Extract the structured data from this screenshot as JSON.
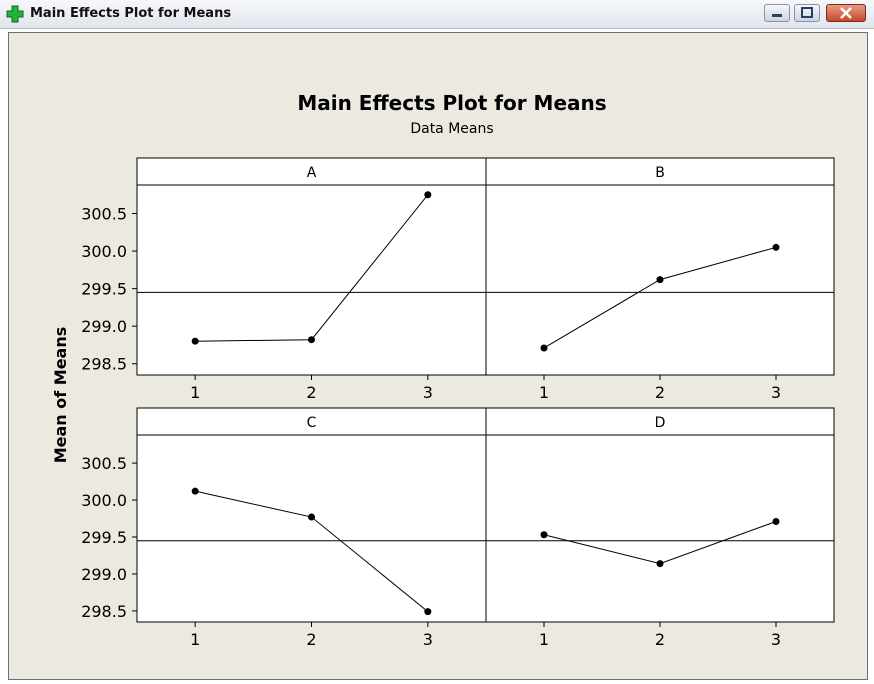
{
  "window": {
    "title": "Main Effects Plot for Means",
    "icon": "green-plus-icon",
    "controls": [
      "minimize-icon",
      "maximize-icon",
      "close-icon"
    ]
  },
  "colors": {
    "background": "#ece9e1",
    "plot_area": "#ffffff",
    "line": "#000000",
    "app_icon": "#21b33a"
  },
  "chart_data": {
    "type": "line",
    "title": "Main Effects Plot for Means",
    "subtitle": "Data Means",
    "ylabel": "Mean of Means",
    "grand_mean": 299.45,
    "ylim": [
      298.35,
      300.88
    ],
    "yticks": [
      "298.5",
      "299.0",
      "299.5",
      "300.0",
      "300.5"
    ],
    "x": [
      "1",
      "2",
      "3"
    ],
    "panels": [
      {
        "name": "A",
        "values": [
          298.8,
          298.82,
          300.75
        ]
      },
      {
        "name": "B",
        "values": [
          298.71,
          299.62,
          300.05
        ]
      },
      {
        "name": "C",
        "values": [
          300.12,
          299.77,
          298.49
        ]
      },
      {
        "name": "D",
        "values": [
          299.53,
          299.14,
          299.71
        ]
      }
    ],
    "grid": false
  }
}
